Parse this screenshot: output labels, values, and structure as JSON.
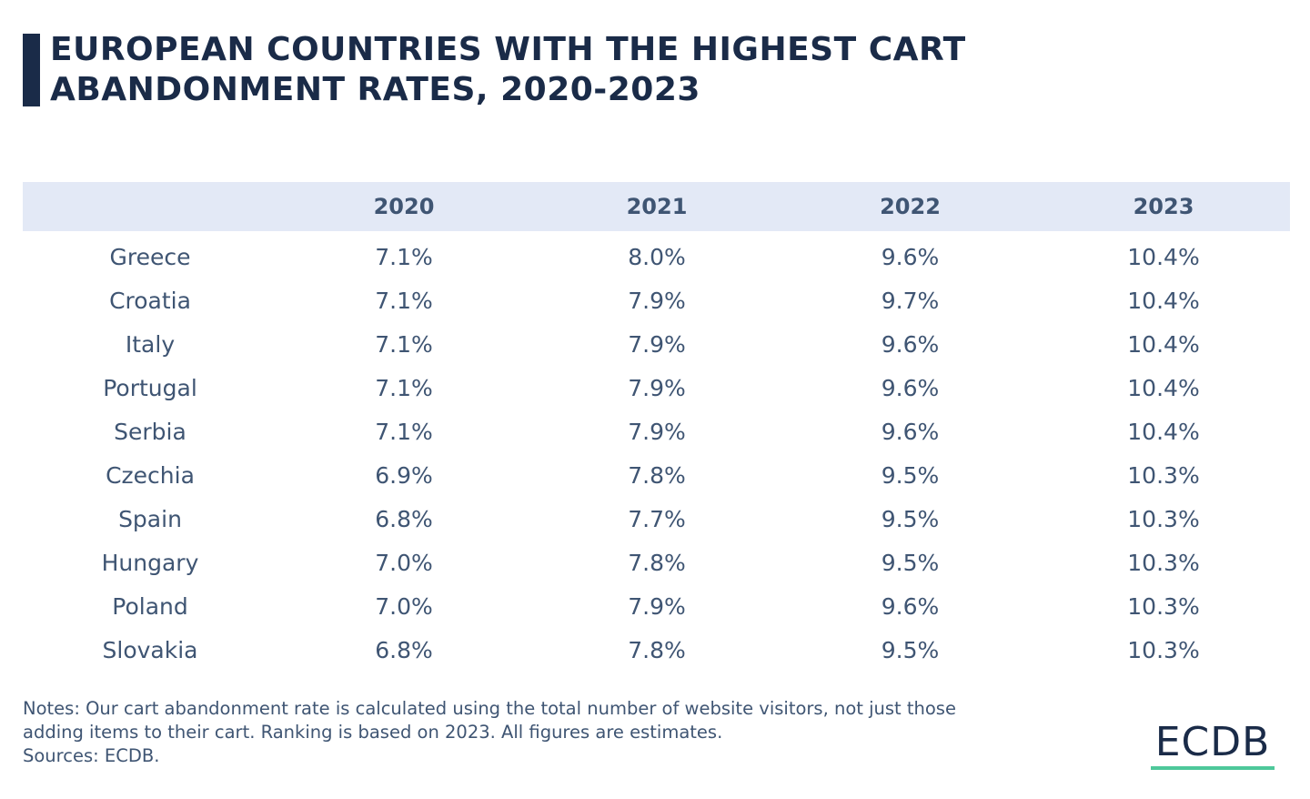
{
  "title": {
    "line1": "EUROPEAN COUNTRIES WITH THE HIGHEST CART",
    "line2": "ABANDONMENT RATES, 2020-2023"
  },
  "chart_data": {
    "type": "table",
    "title": "EUROPEAN COUNTRIES WITH THE HIGHEST CART ABANDONMENT RATES, 2020-2023",
    "columns": [
      "",
      "2020",
      "2021",
      "2022",
      "2023"
    ],
    "rows": [
      [
        "Greece",
        "7.1%",
        "8.0%",
        "9.6%",
        "10.4%"
      ],
      [
        "Croatia",
        "7.1%",
        "7.9%",
        "9.7%",
        "10.4%"
      ],
      [
        "Italy",
        "7.1%",
        "7.9%",
        "9.6%",
        "10.4%"
      ],
      [
        "Portugal",
        "7.1%",
        "7.9%",
        "9.6%",
        "10.4%"
      ],
      [
        "Serbia",
        "7.1%",
        "7.9%",
        "9.6%",
        "10.4%"
      ],
      [
        "Czechia",
        "6.9%",
        "7.8%",
        "9.5%",
        "10.3%"
      ],
      [
        "Spain",
        "6.8%",
        "7.7%",
        "9.5%",
        "10.3%"
      ],
      [
        "Hungary",
        "7.0%",
        "7.8%",
        "9.5%",
        "10.3%"
      ],
      [
        "Poland",
        "7.0%",
        "7.9%",
        "9.6%",
        "10.3%"
      ],
      [
        "Slovakia",
        "6.8%",
        "7.8%",
        "9.5%",
        "10.3%"
      ]
    ]
  },
  "notes": {
    "line1": "Notes: Our cart abandonment rate is calculated using the total number of website visitors, not just those",
    "line2": "adding items to their cart. Ranking is based on 2023. All figures are estimates.",
    "line3": "Sources: ECDB."
  },
  "logo": {
    "text": "ECDB"
  },
  "colors": {
    "title": "#1a2b48",
    "text": "#3f5573",
    "header_bg": "#e3e9f6",
    "logo_accent": "#4ec89a"
  }
}
